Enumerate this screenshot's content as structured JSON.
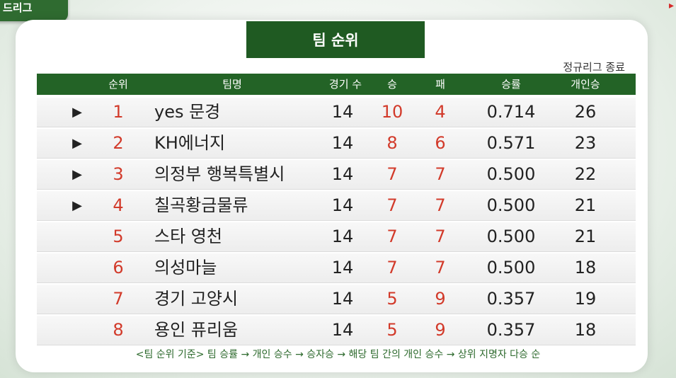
{
  "corner_label": "드리그",
  "title": "팀 순위",
  "subnote": "정규리그 종료",
  "columns": [
    "순위",
    "팀명",
    "경기 수",
    "승",
    "패",
    "승률",
    "개인승"
  ],
  "rows": [
    {
      "arrow": true,
      "rank": "1",
      "team": "yes 문경",
      "games": "14",
      "wins": "10",
      "losses": "4",
      "pct": "0.714",
      "ind": "26"
    },
    {
      "arrow": true,
      "rank": "2",
      "team": "KH에너지",
      "games": "14",
      "wins": "8",
      "losses": "6",
      "pct": "0.571",
      "ind": "23"
    },
    {
      "arrow": true,
      "rank": "3",
      "team": "의정부 행복특별시",
      "games": "14",
      "wins": "7",
      "losses": "7",
      "pct": "0.500",
      "ind": "22"
    },
    {
      "arrow": true,
      "rank": "4",
      "team": "칠곡황금물류",
      "games": "14",
      "wins": "7",
      "losses": "7",
      "pct": "0.500",
      "ind": "21"
    },
    {
      "arrow": false,
      "rank": "5",
      "team": "스타 영천",
      "games": "14",
      "wins": "7",
      "losses": "7",
      "pct": "0.500",
      "ind": "21"
    },
    {
      "arrow": false,
      "rank": "6",
      "team": "의성마늘",
      "games": "14",
      "wins": "7",
      "losses": "7",
      "pct": "0.500",
      "ind": "18"
    },
    {
      "arrow": false,
      "rank": "7",
      "team": "경기 고양시",
      "games": "14",
      "wins": "5",
      "losses": "9",
      "pct": "0.357",
      "ind": "19"
    },
    {
      "arrow": false,
      "rank": "8",
      "team": "용인 퓨리움",
      "games": "14",
      "wins": "5",
      "losses": "9",
      "pct": "0.357",
      "ind": "18"
    }
  ],
  "footer": "<팀 순위 기준> 팀 승률 → 개인 승수 → 승자승 → 해당 팀 간의 개인 승수 → 상위 지명자 다승 순",
  "colors": {
    "header_green": "#236326",
    "title_green": "#1f5a22",
    "accent_red": "#d23a2a"
  }
}
